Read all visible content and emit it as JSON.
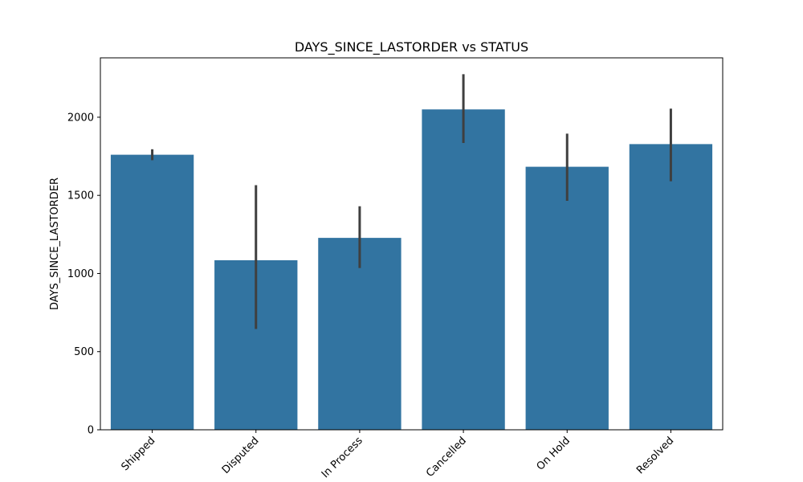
{
  "chart_data": {
    "type": "bar",
    "title": "DAYS_SINCE_LASTORDER vs STATUS",
    "xlabel": "",
    "ylabel": "DAYS_SINCE_LASTORDER",
    "categories": [
      "Shipped",
      "Disputed",
      "In Process",
      "Cancelled",
      "On Hold",
      "Resolved"
    ],
    "values": [
      1760,
      1085,
      1228,
      2050,
      1683,
      1828
    ],
    "error_low": [
      1725,
      645,
      1035,
      1835,
      1465,
      1590
    ],
    "error_high": [
      1795,
      1565,
      1430,
      2275,
      1895,
      2055
    ],
    "ylim": [
      0,
      2380
    ],
    "yticks": [
      0,
      500,
      1000,
      1500,
      2000
    ],
    "grid": false,
    "bar_color": "#3274a1",
    "error_color": "#3f3f3f"
  }
}
